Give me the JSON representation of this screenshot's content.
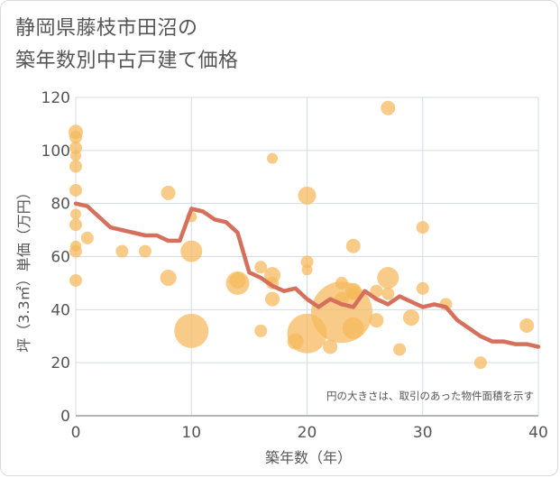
{
  "chart_data": {
    "type": "scatter",
    "title": "静岡県藤枝市田沼の\n築年数別中古戸建て価格",
    "xlabel": "築年数（年）",
    "ylabel": "坪（3.3㎡）単価（万円）",
    "xlim": [
      0,
      40
    ],
    "ylim": [
      0,
      120
    ],
    "xticks": [
      "0",
      "10",
      "20",
      "30",
      "40"
    ],
    "yticks": [
      "0",
      "20",
      "40",
      "60",
      "80",
      "100",
      "120"
    ],
    "grid": true,
    "note": "円の大きさは、取引のあった物件面積を示す",
    "colors": {
      "bubble": "#f5b95a",
      "line": "#d4705b",
      "grid": "#d3dce8"
    },
    "bubbles": [
      {
        "x": 0,
        "y": 107,
        "s": 8
      },
      {
        "x": 0,
        "y": 105,
        "s": 7
      },
      {
        "x": 0,
        "y": 101,
        "s": 7
      },
      {
        "x": 0,
        "y": 98,
        "s": 6
      },
      {
        "x": 0,
        "y": 94,
        "s": 7
      },
      {
        "x": 0,
        "y": 85,
        "s": 7
      },
      {
        "x": 0,
        "y": 76,
        "s": 6
      },
      {
        "x": 0,
        "y": 72,
        "s": 7
      },
      {
        "x": 0,
        "y": 64,
        "s": 6
      },
      {
        "x": 0,
        "y": 62,
        "s": 7
      },
      {
        "x": 0,
        "y": 51,
        "s": 7
      },
      {
        "x": 1,
        "y": 67,
        "s": 7
      },
      {
        "x": 4,
        "y": 62,
        "s": 7
      },
      {
        "x": 6,
        "y": 62,
        "s": 7
      },
      {
        "x": 8,
        "y": 84,
        "s": 8
      },
      {
        "x": 8,
        "y": 52,
        "s": 9
      },
      {
        "x": 10,
        "y": 75,
        "s": 6
      },
      {
        "x": 10,
        "y": 62,
        "s": 12
      },
      {
        "x": 10,
        "y": 32,
        "s": 19
      },
      {
        "x": 14,
        "y": 51,
        "s": 9
      },
      {
        "x": 14,
        "y": 50,
        "s": 13
      },
      {
        "x": 16,
        "y": 56,
        "s": 7
      },
      {
        "x": 16,
        "y": 32,
        "s": 7
      },
      {
        "x": 17,
        "y": 97,
        "s": 6
      },
      {
        "x": 17,
        "y": 53,
        "s": 9
      },
      {
        "x": 17,
        "y": 50,
        "s": 7
      },
      {
        "x": 17,
        "y": 44,
        "s": 8
      },
      {
        "x": 19,
        "y": 28,
        "s": 9
      },
      {
        "x": 20,
        "y": 83,
        "s": 10
      },
      {
        "x": 20,
        "y": 58,
        "s": 7
      },
      {
        "x": 20,
        "y": 55,
        "s": 6
      },
      {
        "x": 20,
        "y": 31,
        "s": 22
      },
      {
        "x": 22,
        "y": 26,
        "s": 8
      },
      {
        "x": 23,
        "y": 50,
        "s": 7
      },
      {
        "x": 23,
        "y": 44,
        "s": 8
      },
      {
        "x": 23,
        "y": 39,
        "s": 34
      },
      {
        "x": 24,
        "y": 64,
        "s": 8
      },
      {
        "x": 24,
        "y": 47,
        "s": 9
      },
      {
        "x": 24,
        "y": 46,
        "s": 7
      },
      {
        "x": 24,
        "y": 33,
        "s": 12
      },
      {
        "x": 26,
        "y": 47,
        "s": 7
      },
      {
        "x": 26,
        "y": 36,
        "s": 8
      },
      {
        "x": 27,
        "y": 116,
        "s": 8
      },
      {
        "x": 27,
        "y": 52,
        "s": 12
      },
      {
        "x": 27,
        "y": 46,
        "s": 7
      },
      {
        "x": 28,
        "y": 25,
        "s": 7
      },
      {
        "x": 29,
        "y": 37,
        "s": 9
      },
      {
        "x": 30,
        "y": 71,
        "s": 7
      },
      {
        "x": 30,
        "y": 48,
        "s": 7
      },
      {
        "x": 32,
        "y": 42,
        "s": 7
      },
      {
        "x": 35,
        "y": 20,
        "s": 7
      },
      {
        "x": 39,
        "y": 34,
        "s": 8
      }
    ],
    "series": [
      {
        "x": [
          0,
          1,
          2,
          3,
          4,
          5,
          6,
          7,
          8,
          9,
          10,
          11,
          12,
          13,
          14,
          15,
          16,
          17,
          18,
          19,
          20,
          21,
          22,
          23,
          24,
          25,
          26,
          27,
          28,
          29,
          30,
          31,
          32,
          33,
          34,
          35,
          36,
          37,
          38,
          39,
          40
        ],
        "y": [
          80,
          79,
          75,
          71,
          70,
          69,
          68,
          68,
          66,
          66,
          78,
          77,
          74,
          73,
          69,
          54,
          52,
          49,
          47,
          48,
          44,
          41,
          44,
          42,
          41,
          47,
          44,
          42,
          45,
          43,
          41,
          42,
          41,
          36,
          33,
          30,
          28,
          28,
          27,
          27,
          26
        ]
      }
    ]
  }
}
